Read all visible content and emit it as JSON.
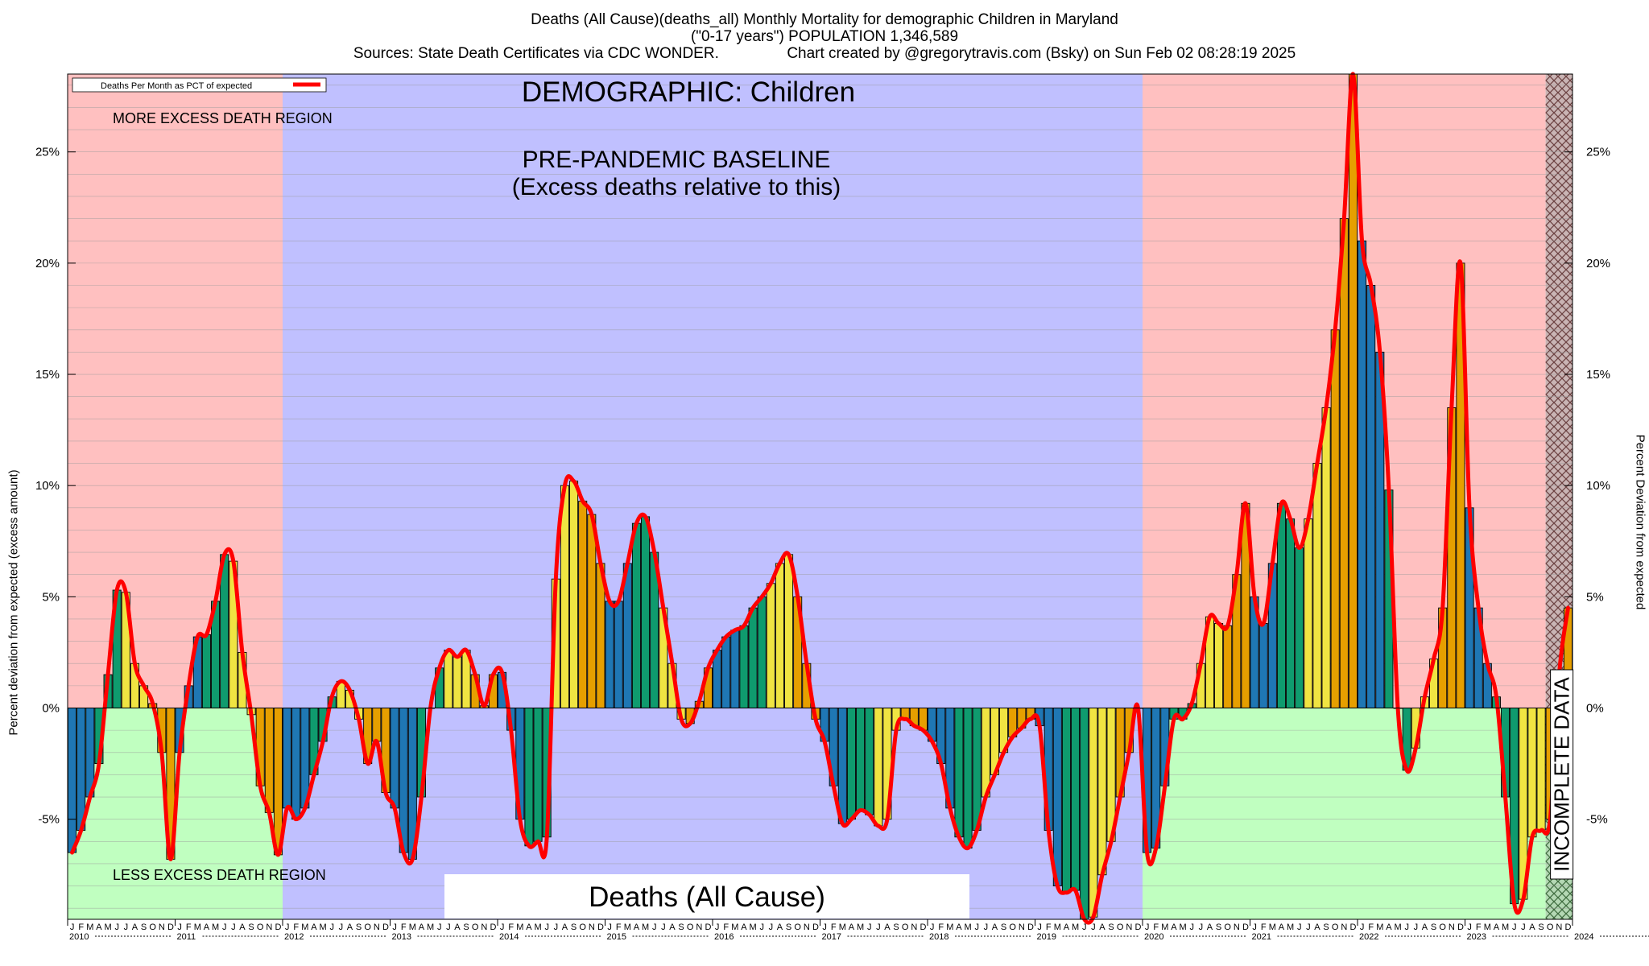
{
  "titles": {
    "line1": "Deaths (All Cause)(deaths_all) Monthly Mortality for demographic Children in Maryland",
    "line2": "(\"0-17 years\") POPULATION 1,346,589",
    "line3": "Sources: State Death Certificates via CDC WONDER.                Chart created by @gregorytravis.com (Bsky) on Sun Feb 02 08:28:19 2025"
  },
  "annotations": {
    "demographic": "DEMOGRAPHIC: Children",
    "baseline_line1": "PRE-PANDEMIC BASELINE",
    "baseline_line2": "(Excess deaths relative to this)",
    "more_region": "MORE EXCESS DEATH REGION",
    "less_region": "LESS EXCESS DEATH REGION",
    "bottom_box": "Deaths (All Cause)",
    "incomplete": "INCOMPLETE DATA"
  },
  "legend": {
    "label": "Deaths Per Month as PCT of expected"
  },
  "colors": {
    "more_region": "#ffc0c0",
    "less_region": "#c0ffc0",
    "baseline_region": "#c0c0ff",
    "line": "#ff0000",
    "bar_palette": [
      "#1f77b4",
      "#0f9b6e",
      "#f0e442",
      "#e69f00"
    ]
  },
  "chart_data": {
    "type": "bar",
    "title": "Deaths (All Cause)(deaths_all) Monthly Mortality for demographic Children in Maryland",
    "ylabel_left": "Percent deviation from expected (excess amount)",
    "ylabel_right": "Percent Deviation from expected",
    "ylim": [
      -9.5,
      28.5
    ],
    "yticks": [
      -5,
      0,
      5,
      10,
      15,
      20,
      25
    ],
    "ytick_labels": [
      "-5%",
      "0%",
      "5%",
      "10%",
      "15%",
      "20%",
      "25%"
    ],
    "x_start": "2010-01",
    "month_letters": [
      "J",
      "F",
      "M",
      "A",
      "M",
      "J",
      "J",
      "A",
      "S",
      "O",
      "N",
      "D"
    ],
    "years": [
      "2010",
      "2011",
      "2012",
      "2013",
      "2014",
      "2015",
      "2016",
      "2017",
      "2018",
      "2019",
      "2020",
      "2021",
      "2022",
      "2023",
      "2024"
    ],
    "baseline_years": [
      "2012",
      "2013",
      "2014",
      "2015",
      "2016",
      "2017",
      "2018",
      "2019"
    ],
    "incomplete_months": 3,
    "values": [
      -6.5,
      -5.5,
      -4.0,
      -2.5,
      1.5,
      5.3,
      5.2,
      2.0,
      1.0,
      0.2,
      -2.0,
      -6.8,
      -2.0,
      1.0,
      3.2,
      3.3,
      4.8,
      6.9,
      6.6,
      2.5,
      -0.3,
      -3.5,
      -4.7,
      -6.6,
      -4.5,
      -5.0,
      -4.5,
      -3.0,
      -1.5,
      0.5,
      1.2,
      0.8,
      -0.5,
      -2.5,
      -1.5,
      -3.8,
      -4.5,
      -6.5,
      -6.8,
      -4.0,
      0.0,
      1.8,
      2.6,
      2.3,
      2.6,
      1.5,
      0.1,
      1.5,
      1.6,
      -1.0,
      -5.0,
      -6.2,
      -6.0,
      -5.8,
      5.8,
      10.0,
      10.2,
      9.3,
      8.7,
      6.5,
      4.8,
      4.8,
      6.5,
      8.3,
      8.6,
      7.0,
      4.5,
      2.0,
      -0.5,
      -0.7,
      0.3,
      1.8,
      2.6,
      3.2,
      3.5,
      3.7,
      4.5,
      5.0,
      5.6,
      6.5,
      6.9,
      5.0,
      2.0,
      -0.5,
      -1.5,
      -3.5,
      -5.2,
      -5.0,
      -4.6,
      -4.8,
      -5.3,
      -5.0,
      -1.0,
      -0.5,
      -0.8,
      -1.0,
      -1.5,
      -2.5,
      -4.5,
      -5.8,
      -6.3,
      -5.5,
      -4.0,
      -3.0,
      -2.0,
      -1.3,
      -0.9,
      -0.5,
      -0.8,
      -5.5,
      -8.0,
      -8.3,
      -8.2,
      -9.5,
      -9.4,
      -7.5,
      -6.0,
      -4.0,
      -2.0,
      0.0,
      -6.5,
      -6.3,
      -3.5,
      -0.5,
      -0.5,
      0.2,
      2.0,
      4.1,
      3.8,
      3.7,
      6.0,
      9.2,
      5.0,
      3.8,
      6.5,
      9.2,
      8.5,
      7.2,
      8.5,
      11.0,
      13.5,
      17.0,
      22.0,
      28.5,
      21.0,
      19.0,
      16.0,
      9.8,
      0.0,
      -2.8,
      -1.8,
      0.5,
      2.2,
      4.5,
      13.5,
      20.0,
      9.0,
      4.5,
      2.0,
      0.5,
      -4.0,
      -8.8,
      -8.6,
      -5.8,
      -5.5,
      -5.0,
      1.5,
      4.5
    ]
  }
}
